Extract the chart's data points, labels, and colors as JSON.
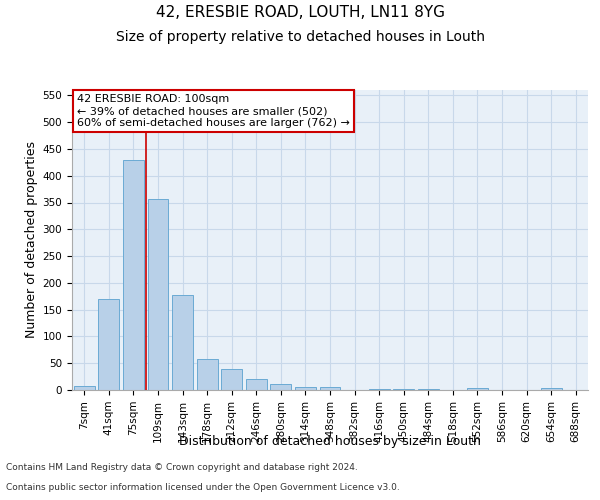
{
  "title1": "42, ERESBIE ROAD, LOUTH, LN11 8YG",
  "title2": "Size of property relative to detached houses in Louth",
  "xlabel": "Distribution of detached houses by size in Louth",
  "ylabel": "Number of detached properties",
  "categories": [
    "7sqm",
    "41sqm",
    "75sqm",
    "109sqm",
    "143sqm",
    "178sqm",
    "212sqm",
    "246sqm",
    "280sqm",
    "314sqm",
    "348sqm",
    "382sqm",
    "416sqm",
    "450sqm",
    "484sqm",
    "518sqm",
    "552sqm",
    "586sqm",
    "620sqm",
    "654sqm",
    "688sqm"
  ],
  "values": [
    8,
    170,
    430,
    357,
    178,
    57,
    40,
    21,
    11,
    5,
    5,
    0,
    2,
    1,
    1,
    0,
    3,
    0,
    0,
    3,
    0
  ],
  "bar_color": "#b8d0e8",
  "bar_edge_color": "#6aaad4",
  "grid_color": "#c8d8ea",
  "background_color": "#e8f0f8",
  "vline_color": "#cc0000",
  "vline_x_index": 2.5,
  "annotation_line1": "42 ERESBIE ROAD: 100sqm",
  "annotation_line2": "← 39% of detached houses are smaller (502)",
  "annotation_line3": "60% of semi-detached houses are larger (762) →",
  "annotation_box_color": "#ffffff",
  "annotation_box_edge": "#cc0000",
  "ylim": [
    0,
    560
  ],
  "yticks": [
    0,
    50,
    100,
    150,
    200,
    250,
    300,
    350,
    400,
    450,
    500,
    550
  ],
  "footnote1": "Contains HM Land Registry data © Crown copyright and database right 2024.",
  "footnote2": "Contains public sector information licensed under the Open Government Licence v3.0.",
  "title_fontsize": 11,
  "subtitle_fontsize": 10,
  "xlabel_fontsize": 9,
  "ylabel_fontsize": 9,
  "tick_fontsize": 7.5,
  "annot_fontsize": 8
}
